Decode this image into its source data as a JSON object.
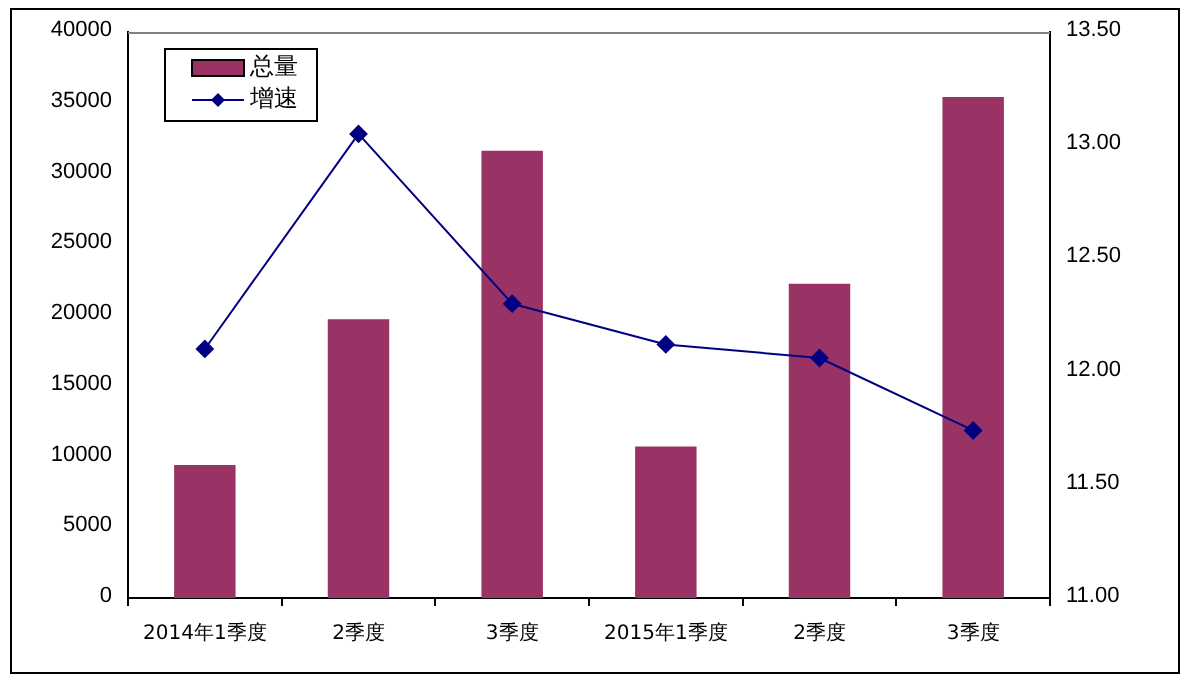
{
  "chart_data": {
    "type": "bar",
    "categories": [
      "2014年1季度",
      "2季度",
      "3季度",
      "2015年1季度",
      "2季度",
      "3季度"
    ],
    "series": [
      {
        "name": "总量",
        "color": "#993366",
        "values": [
          9400,
          19700,
          31600,
          10700,
          22200,
          35400
        ]
      },
      {
        "name": "增速",
        "type": "line",
        "axis": "y2",
        "color": "#000080",
        "values": [
          12.1,
          13.05,
          12.3,
          12.12,
          12.06,
          11.74
        ]
      }
    ],
    "ylim": [
      0,
      40000
    ],
    "yticks": [
      0,
      5000,
      10000,
      15000,
      20000,
      25000,
      30000,
      35000,
      40000
    ],
    "y2lim": [
      11,
      13.5
    ],
    "y2ticks": [
      {
        "value": 11,
        "label": "11.00"
      },
      {
        "value": 11.5,
        "label": "11.50"
      },
      {
        "value": 12,
        "label": "12.00"
      },
      {
        "value": 12.5,
        "label": "12.50"
      },
      {
        "value": 13,
        "label": "13.00"
      },
      {
        "value": 13.5,
        "label": "13.50"
      }
    ],
    "grid": false,
    "legend": "top left",
    "marker": "diamond"
  }
}
